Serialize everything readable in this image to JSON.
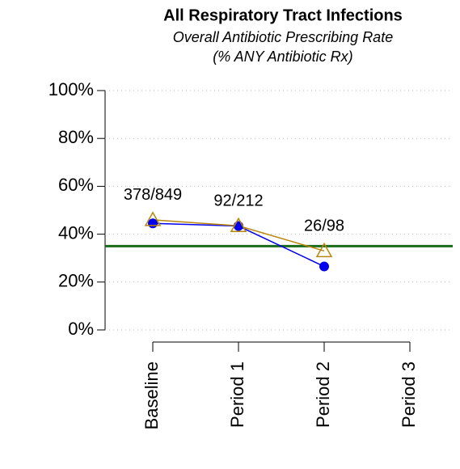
{
  "chart_data": {
    "type": "line",
    "title": "All Respiratory Tract Infections",
    "subtitle": [
      "Overall Antibiotic Prescribing Rate",
      "(% ANY Antibiotic Rx)"
    ],
    "categories": [
      "Baseline",
      "Period 1",
      "Period 2",
      "Period 3"
    ],
    "series": [
      {
        "color": "#0000ee",
        "marker": "circle",
        "values": [
          44.5,
          43.4,
          26.5,
          null
        ]
      },
      {
        "color": "#b8860b",
        "marker": "triangle",
        "values": [
          46,
          43.5,
          33,
          null
        ]
      }
    ],
    "annotations": [
      "378/849",
      "92/212",
      "26/98"
    ],
    "annotation_color": "#0000ee",
    "reference_line": {
      "value": 35,
      "color": "#1a6b1a"
    },
    "ylim": [
      0,
      100
    ],
    "yticks": [
      {
        "value": 0,
        "label": "0%"
      },
      {
        "value": 20,
        "label": "20%"
      },
      {
        "value": 40,
        "label": "40%"
      },
      {
        "value": 60,
        "label": "60%"
      },
      {
        "value": 80,
        "label": "80%"
      },
      {
        "value": 100,
        "label": "100%"
      }
    ],
    "grid": true
  }
}
